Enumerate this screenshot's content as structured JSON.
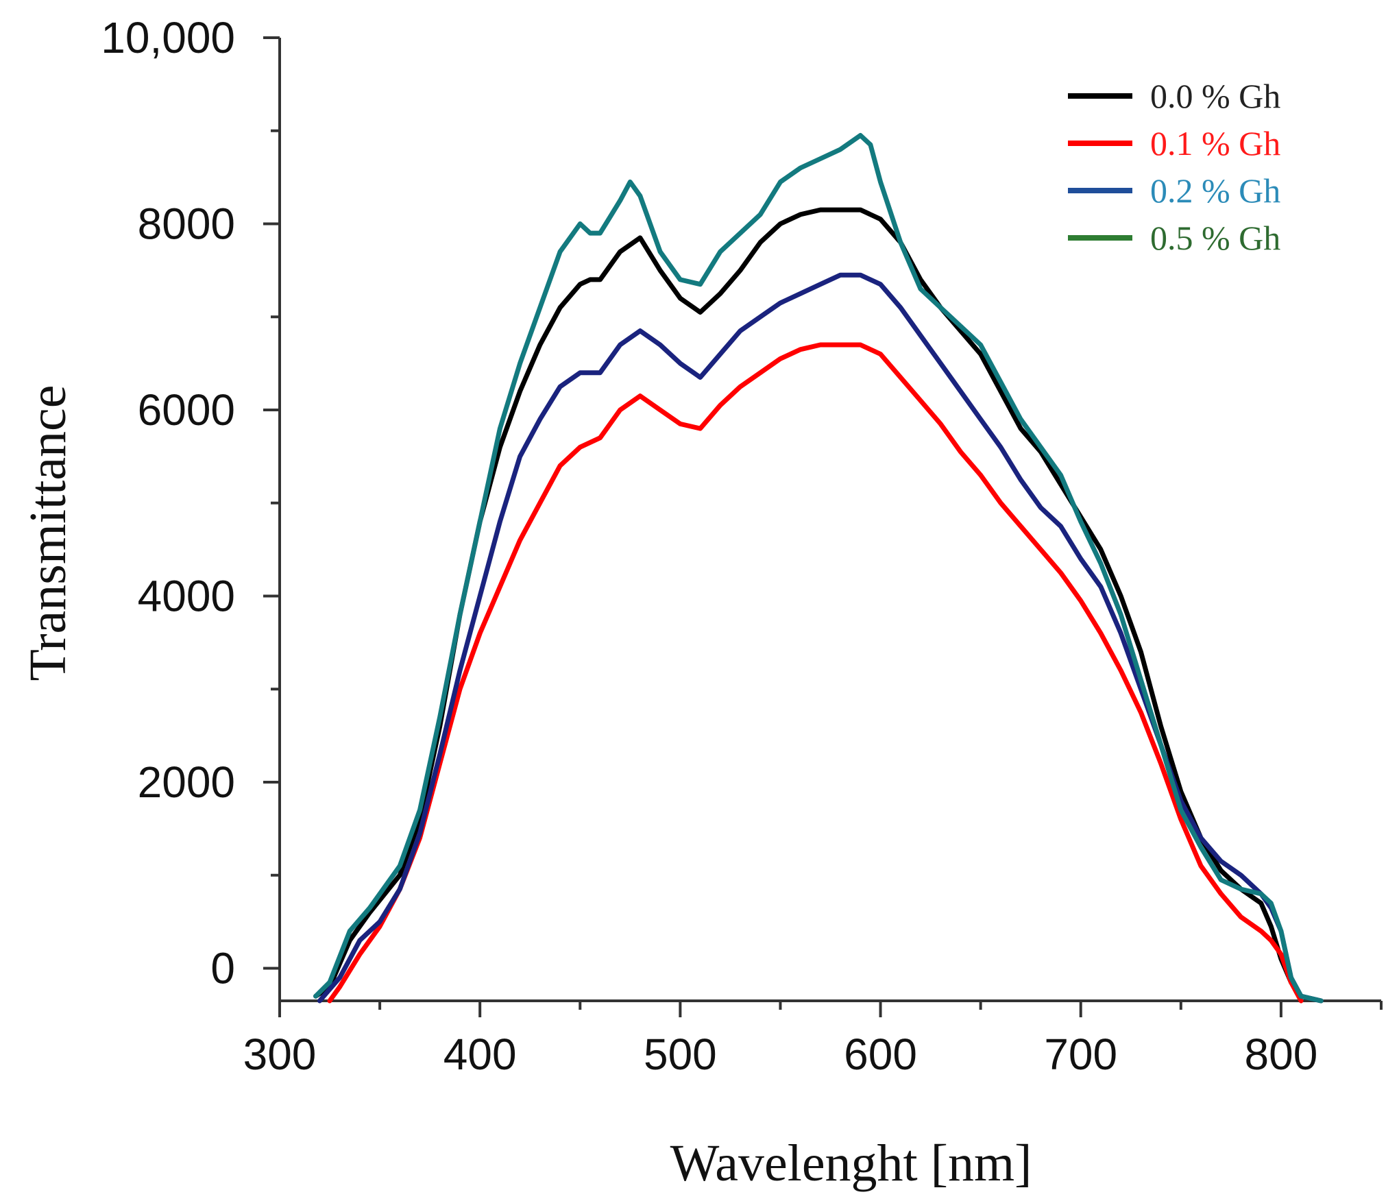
{
  "chart_data": {
    "type": "line",
    "title": "",
    "xlabel": "Wavelenght [nm]",
    "ylabel": "Transmittance",
    "xlim": [
      300,
      850
    ],
    "ylim": [
      -350,
      10000
    ],
    "x_ticks": [
      300,
      400,
      500,
      600,
      700,
      800
    ],
    "x_tick_labels": [
      "300",
      "400",
      "500",
      "600",
      "700",
      "800"
    ],
    "y_ticks": [
      0,
      2000,
      4000,
      6000,
      8000,
      10000
    ],
    "y_tick_labels": [
      "0",
      "2000",
      "4000",
      "6000",
      "8000",
      "10,000"
    ],
    "grid": false,
    "legend_position": "top-right",
    "legend": [
      {
        "label": "0.0 % Gh",
        "line_color": "#000000",
        "text_color": "#222222"
      },
      {
        "label": "0.1 % Gh",
        "line_color": "#ff0000",
        "text_color": "#ff1a1a"
      },
      {
        "label": "0.2 % Gh",
        "line_color": "#1f4e9a",
        "text_color": "#2b8bb8"
      },
      {
        "label": "0.5 % Gh",
        "line_color": "#2e7d32",
        "text_color": "#2e6b30"
      }
    ],
    "series": [
      {
        "color": "#000000",
        "x": [
          318,
          325,
          335,
          345,
          360,
          370,
          380,
          390,
          400,
          410,
          420,
          430,
          440,
          450,
          455,
          460,
          470,
          480,
          490,
          500,
          510,
          520,
          530,
          540,
          550,
          560,
          570,
          580,
          590,
          600,
          610,
          620,
          630,
          640,
          650,
          660,
          670,
          680,
          690,
          700,
          710,
          720,
          730,
          740,
          750,
          760,
          770,
          780,
          790,
          795,
          800,
          805,
          810,
          820
        ],
        "y": [
          -300,
          -200,
          300,
          600,
          1000,
          1600,
          2600,
          3800,
          4800,
          5600,
          6200,
          6700,
          7100,
          7350,
          7400,
          7400,
          7700,
          7850,
          7500,
          7200,
          7050,
          7250,
          7500,
          7800,
          8000,
          8100,
          8150,
          8150,
          8150,
          8050,
          7800,
          7400,
          7100,
          6850,
          6600,
          6200,
          5800,
          5550,
          5200,
          4850,
          4500,
          4000,
          3400,
          2600,
          1900,
          1400,
          1050,
          850,
          700,
          450,
          100,
          -150,
          -300,
          -350
        ]
      },
      {
        "color": "#ff0000",
        "x": [
          325,
          330,
          340,
          350,
          360,
          370,
          380,
          390,
          400,
          410,
          420,
          430,
          440,
          450,
          460,
          470,
          480,
          490,
          500,
          510,
          520,
          530,
          540,
          550,
          560,
          570,
          580,
          590,
          600,
          610,
          620,
          630,
          640,
          650,
          660,
          670,
          680,
          690,
          700,
          710,
          720,
          730,
          740,
          750,
          760,
          770,
          780,
          790,
          795,
          800,
          805,
          810
        ],
        "y": [
          -350,
          -200,
          150,
          450,
          850,
          1400,
          2200,
          3000,
          3600,
          4100,
          4600,
          5000,
          5400,
          5600,
          5700,
          6000,
          6150,
          6000,
          5850,
          5800,
          6050,
          6250,
          6400,
          6550,
          6650,
          6700,
          6700,
          6700,
          6600,
          6350,
          6100,
          5850,
          5550,
          5300,
          5000,
          4750,
          4500,
          4250,
          3950,
          3600,
          3200,
          2750,
          2200,
          1600,
          1100,
          800,
          550,
          400,
          300,
          150,
          -150,
          -350
        ]
      },
      {
        "color": "#1a237e",
        "x": [
          320,
          330,
          340,
          350,
          360,
          370,
          380,
          390,
          400,
          410,
          420,
          430,
          440,
          450,
          460,
          470,
          480,
          490,
          500,
          510,
          520,
          530,
          540,
          550,
          560,
          570,
          580,
          590,
          600,
          610,
          620,
          630,
          640,
          650,
          660,
          670,
          680,
          690,
          700,
          710,
          720,
          730,
          740,
          750,
          760,
          770,
          780,
          790,
          795,
          800,
          805,
          810,
          820
        ],
        "y": [
          -350,
          -100,
          300,
          500,
          850,
          1450,
          2300,
          3200,
          4000,
          4800,
          5500,
          5900,
          6250,
          6400,
          6400,
          6700,
          6850,
          6700,
          6500,
          6350,
          6600,
          6850,
          7000,
          7150,
          7250,
          7350,
          7450,
          7450,
          7350,
          7100,
          6800,
          6500,
          6200,
          5900,
          5600,
          5250,
          4950,
          4750,
          4400,
          4100,
          3600,
          3000,
          2400,
          1800,
          1400,
          1150,
          1000,
          800,
          650,
          400,
          -100,
          -300,
          -350
        ]
      },
      {
        "color": "#137a7f",
        "x": [
          318,
          325,
          335,
          345,
          360,
          370,
          380,
          390,
          400,
          410,
          420,
          430,
          440,
          450,
          455,
          460,
          470,
          475,
          480,
          490,
          500,
          510,
          520,
          530,
          540,
          550,
          560,
          570,
          580,
          590,
          595,
          600,
          610,
          620,
          630,
          640,
          650,
          660,
          670,
          680,
          690,
          700,
          710,
          720,
          730,
          740,
          750,
          760,
          770,
          780,
          790,
          795,
          800,
          805,
          810,
          820
        ],
        "y": [
          -300,
          -150,
          400,
          650,
          1100,
          1700,
          2700,
          3800,
          4800,
          5800,
          6500,
          7100,
          7700,
          8000,
          7900,
          7900,
          8250,
          8450,
          8300,
          7700,
          7400,
          7350,
          7700,
          7900,
          8100,
          8450,
          8600,
          8700,
          8800,
          8950,
          8850,
          8450,
          7800,
          7300,
          7100,
          6900,
          6700,
          6300,
          5900,
          5600,
          5300,
          4800,
          4350,
          3800,
          3100,
          2400,
          1700,
          1300,
          950,
          850,
          800,
          700,
          400,
          -100,
          -300,
          -350
        ]
      }
    ]
  }
}
